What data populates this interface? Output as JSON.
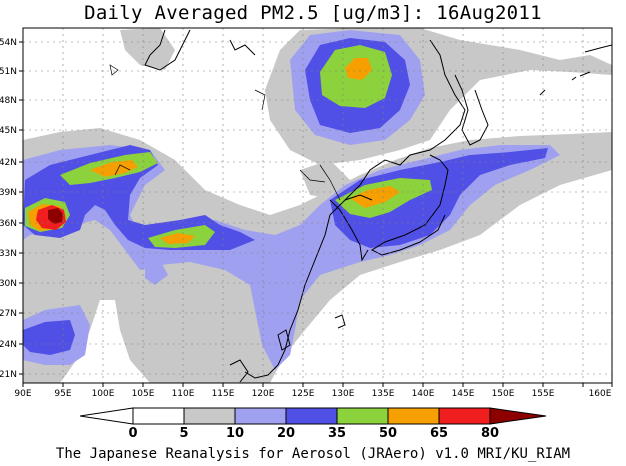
{
  "title": "Daily Averaged PM2.5 [ug/m3]: 16Aug2011",
  "footer": "The Japanese Reanalysis for Aerosol (JRAero) v1.0 MRI/KU_RIAM",
  "lon_labels": [
    "90E",
    "95E",
    "100E",
    "105E",
    "110E",
    "115E",
    "120E",
    "125E",
    "130E",
    "135E",
    "140E",
    "145E",
    "150E",
    "155E",
    "160E"
  ],
  "lat_labels": [
    "54N",
    "51N",
    "48N",
    "45N",
    "42N",
    "39N",
    "36N",
    "33N",
    "30N",
    "27N",
    "24N",
    "21N"
  ],
  "colorbar": {
    "labels": [
      "0",
      "5",
      "10",
      "20",
      "35",
      "50",
      "65",
      "80"
    ],
    "colors": [
      "#ffffff",
      "#c8c8c8",
      "#a0a0f0",
      "#5050e6",
      "#8cd23c",
      "#f5a000",
      "#f01e1e",
      "#8c0000"
    ]
  },
  "colors": {
    "gray": "#c8c8c8",
    "lightblue": "#a0a0f0",
    "blue": "#5050e6",
    "green": "#8cd23c",
    "orange": "#f5a000",
    "red": "#f01e1e",
    "darkred": "#8c0000"
  }
}
